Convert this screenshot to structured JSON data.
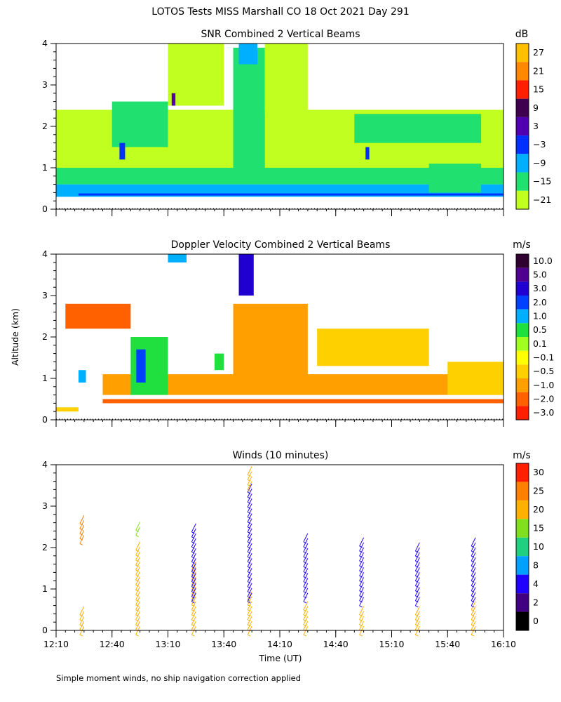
{
  "figure": {
    "main_title": "LOTOS Tests MISS Marshall CO  18 Oct 2021 Day 291",
    "y_axis_label": "Altitude (km)",
    "x_axis_label": "Time (UT)",
    "footnote": "Simple moment winds, no ship navigation correction applied"
  },
  "chart_data": [
    {
      "type": "heatmap",
      "title": "SNR Combined 2 Vertical Beams",
      "colorbar_unit": "dB",
      "colorbar_ticks": [
        "27",
        "21",
        "15",
        "9",
        "3",
        "−3",
        "−9",
        "−15",
        "−21"
      ],
      "colorbar_colors": [
        "#ffc000",
        "#ff8800",
        "#ff2000",
        "#400050",
        "#5000b0",
        "#0030ff",
        "#00b0ff",
        "#20e070",
        "#c0ff20"
      ],
      "ylim": [
        0,
        4
      ],
      "yticks": [
        "0",
        "1",
        "2",
        "3",
        "4"
      ],
      "regions": [
        {
          "t0": 0,
          "t1": 240,
          "z0": 0.3,
          "z1": 0.6,
          "level": 6
        },
        {
          "t0": 12,
          "t1": 240,
          "z0": 0.33,
          "z1": 0.38,
          "level": 5
        },
        {
          "t0": 0,
          "t1": 240,
          "z0": 0.6,
          "z1": 1.0,
          "level": 7
        },
        {
          "t0": 0,
          "t1": 240,
          "z0": 1.0,
          "z1": 2.4,
          "level": 8
        },
        {
          "t0": 95,
          "t1": 112,
          "z0": 1.0,
          "z1": 3.9,
          "level": 7
        },
        {
          "t0": 98,
          "t1": 108,
          "z0": 3.5,
          "z1": 4.0,
          "level": 6
        },
        {
          "t0": 160,
          "t1": 228,
          "z0": 1.6,
          "z1": 2.3,
          "level": 7
        },
        {
          "t0": 30,
          "t1": 60,
          "z0": 1.5,
          "z1": 2.6,
          "level": 7
        },
        {
          "t0": 60,
          "t1": 90,
          "z0": 2.5,
          "z1": 4.0,
          "level": 8
        },
        {
          "t0": 112,
          "t1": 135,
          "z0": 2.3,
          "z1": 4.0,
          "level": 8
        },
        {
          "t0": 200,
          "t1": 228,
          "z0": 0.4,
          "z1": 1.1,
          "level": 7
        },
        {
          "t0": 34,
          "t1": 37,
          "z0": 1.2,
          "z1": 1.6,
          "level": 5
        },
        {
          "t0": 62,
          "t1": 64,
          "z0": 2.5,
          "z1": 2.8,
          "level": 4
        },
        {
          "t0": 166,
          "t1": 168,
          "z0": 1.2,
          "z1": 1.5,
          "level": 5
        }
      ]
    },
    {
      "type": "heatmap",
      "title": "Doppler Velocity Combined 2 Vertical Beams",
      "colorbar_unit": "m/s",
      "colorbar_ticks": [
        "10.0",
        "5.0",
        "3.0",
        "2.0",
        "1.0",
        "0.5",
        "0.1",
        "−0.1",
        "−0.5",
        "−1.0",
        "−2.0",
        "−3.0"
      ],
      "colorbar_colors": [
        "#300030",
        "#500090",
        "#2000d0",
        "#0040ff",
        "#00b0ff",
        "#20e040",
        "#a0ff20",
        "#ffff00",
        "#ffd000",
        "#ffa000",
        "#ff6000",
        "#ff2000"
      ],
      "ylim": [
        0,
        4
      ],
      "yticks": [
        "0",
        "1",
        "2",
        "3",
        "4"
      ],
      "regions": [
        {
          "t0": 0,
          "t1": 12,
          "z0": 0.2,
          "z1": 0.3,
          "level": 8
        },
        {
          "t0": 25,
          "t1": 240,
          "z0": 0.4,
          "z1": 0.5,
          "level": 10
        },
        {
          "t0": 25,
          "t1": 240,
          "z0": 0.6,
          "z1": 1.1,
          "level": 9
        },
        {
          "t0": 95,
          "t1": 135,
          "z0": 1.0,
          "z1": 2.8,
          "level": 9
        },
        {
          "t0": 140,
          "t1": 200,
          "z0": 1.3,
          "z1": 2.2,
          "level": 8
        },
        {
          "t0": 210,
          "t1": 240,
          "z0": 0.6,
          "z1": 1.4,
          "level": 8
        },
        {
          "t0": 5,
          "t1": 40,
          "z0": 2.2,
          "z1": 2.8,
          "level": 10
        },
        {
          "t0": 40,
          "t1": 60,
          "z0": 0.6,
          "z1": 2.0,
          "level": 5
        },
        {
          "t0": 43,
          "t1": 48,
          "z0": 0.9,
          "z1": 1.7,
          "level": 3
        },
        {
          "t0": 98,
          "t1": 106,
          "z0": 3.0,
          "z1": 4.0,
          "level": 2
        },
        {
          "t0": 60,
          "t1": 70,
          "z0": 3.8,
          "z1": 4.0,
          "level": 4
        },
        {
          "t0": 85,
          "t1": 90,
          "z0": 1.2,
          "z1": 1.6,
          "level": 5
        },
        {
          "t0": 12,
          "t1": 16,
          "z0": 0.9,
          "z1": 1.2,
          "level": 4
        }
      ]
    },
    {
      "type": "scatter",
      "title": "Winds (10 minutes)",
      "colorbar_unit": "m/s",
      "colorbar_ticks": [
        "30",
        "25",
        "20",
        "15",
        "10",
        "8",
        "4",
        "2",
        "0"
      ],
      "colorbar_colors": [
        "#ff2000",
        "#ff8000",
        "#ffb000",
        "#80e020",
        "#20d080",
        "#00a0ff",
        "#2000ff",
        "#400080",
        "#000000"
      ],
      "ylim": [
        0,
        4
      ],
      "yticks": [
        "0",
        "1",
        "2",
        "3",
        "4"
      ],
      "xticks": [
        "12:10",
        "12:40",
        "13:10",
        "13:40",
        "14:10",
        "14:40",
        "15:10",
        "15:40",
        "16:10"
      ],
      "profiles": [
        {
          "t": 15,
          "zmin": 0.1,
          "zmax": 0.6,
          "speed": 20
        },
        {
          "t": 15,
          "zmin": 2.3,
          "zmax": 2.8,
          "speed": 25
        },
        {
          "t": 45,
          "zmin": 0.1,
          "zmax": 2.2,
          "speed": 20
        },
        {
          "t": 45,
          "zmin": 2.5,
          "zmax": 2.7,
          "speed": 15
        },
        {
          "t": 75,
          "zmin": 0.1,
          "zmax": 1.7,
          "speed": 22
        },
        {
          "t": 75,
          "zmin": 0.9,
          "zmax": 2.6,
          "speed": 6
        },
        {
          "t": 105,
          "zmin": 0.1,
          "zmax": 1.0,
          "speed": 22
        },
        {
          "t": 105,
          "zmin": 0.9,
          "zmax": 3.6,
          "speed": 6
        },
        {
          "t": 105,
          "zmin": 3.6,
          "zmax": 4.0,
          "speed": 20
        },
        {
          "t": 135,
          "zmin": 0.1,
          "zmax": 0.7,
          "speed": 22
        },
        {
          "t": 135,
          "zmin": 0.9,
          "zmax": 2.4,
          "speed": 6
        },
        {
          "t": 165,
          "zmin": 0.1,
          "zmax": 0.6,
          "speed": 22
        },
        {
          "t": 165,
          "zmin": 0.8,
          "zmax": 2.3,
          "speed": 5
        },
        {
          "t": 195,
          "zmin": 0.1,
          "zmax": 0.6,
          "speed": 22
        },
        {
          "t": 195,
          "zmin": 0.8,
          "zmax": 2.2,
          "speed": 6
        },
        {
          "t": 225,
          "zmin": 0.1,
          "zmax": 0.7,
          "speed": 22
        },
        {
          "t": 225,
          "zmin": 0.8,
          "zmax": 2.3,
          "speed": 6
        }
      ]
    }
  ]
}
